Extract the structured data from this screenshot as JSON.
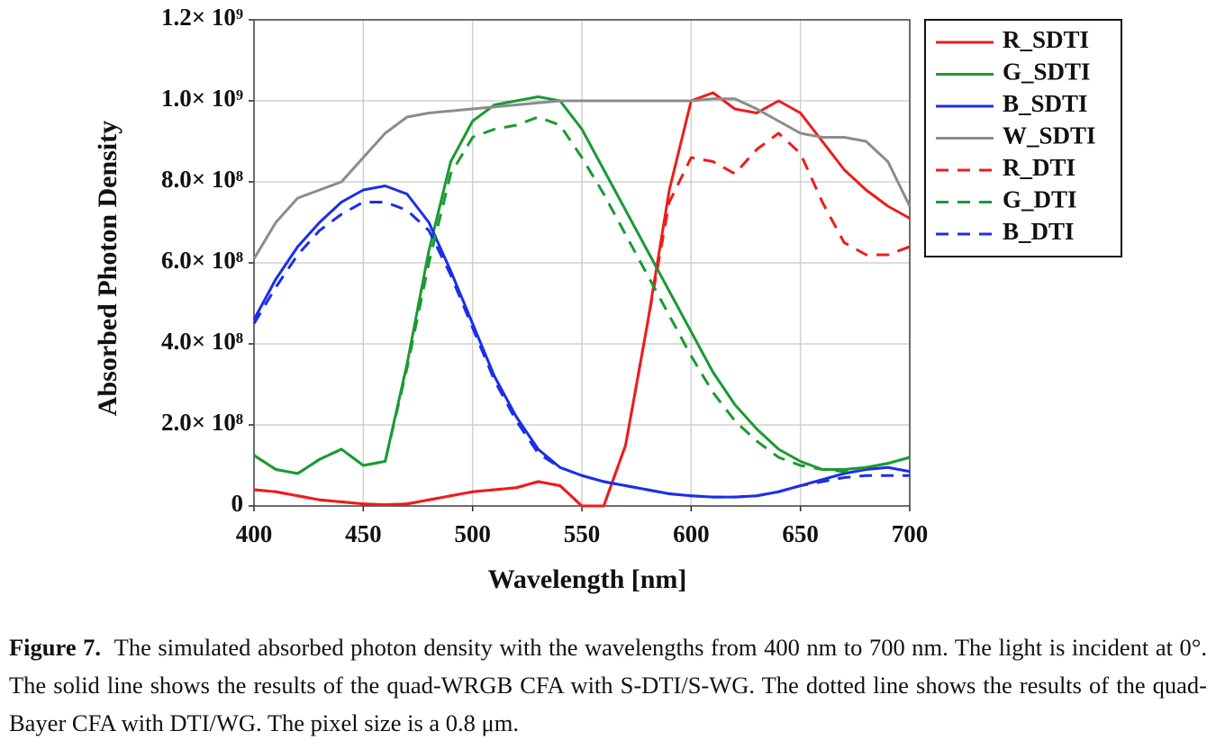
{
  "chart_data": {
    "type": "line",
    "xlabel": "Wavelength [nm]",
    "ylabel": "Absorbed Photon Density",
    "x": [
      400,
      410,
      420,
      430,
      440,
      450,
      460,
      470,
      480,
      490,
      500,
      510,
      520,
      530,
      540,
      550,
      560,
      570,
      580,
      590,
      600,
      610,
      620,
      630,
      640,
      650,
      660,
      670,
      680,
      690,
      700
    ],
    "xlim": [
      400,
      700
    ],
    "xticks": [
      400,
      450,
      500,
      550,
      600,
      650,
      700
    ],
    "ylim": [
      0,
      1200000000.0
    ],
    "yticks": [
      0,
      {
        "value": 200000000.0,
        "label": "2.0× 10⁸"
      },
      {
        "value": 400000000.0,
        "label": "4.0× 10⁸"
      },
      {
        "value": 600000000.0,
        "label": "6.0× 10⁸"
      },
      {
        "value": 800000000.0,
        "label": "8.0× 10⁸"
      },
      {
        "value": 1000000000.0,
        "label": "1.0× 10⁹"
      },
      {
        "value": 1200000000.0,
        "label": "1.2× 10⁹"
      }
    ],
    "grid": true,
    "legend": "outside-right",
    "series": [
      {
        "name": "R_SDTI",
        "color": "#ee1c1c",
        "dashed": false,
        "values": [
          40000000.0,
          35000000.0,
          25000000.0,
          15000000.0,
          10000000.0,
          5000000.0,
          3000000.0,
          5000000.0,
          15000000.0,
          25000000.0,
          35000000.0,
          40000000.0,
          45000000.0,
          60000000.0,
          50000000.0,
          0,
          0,
          150000000.0,
          450000000.0,
          780000000.0,
          1000000000.0,
          1020000000.0,
          980000000.0,
          970000000.0,
          1000000000.0,
          970000000.0,
          900000000.0,
          830000000.0,
          780000000.0,
          740000000.0,
          710000000.0
        ]
      },
      {
        "name": "G_SDTI",
        "color": "#1a9a32",
        "dashed": false,
        "values": [
          125000000.0,
          90000000.0,
          80000000.0,
          115000000.0,
          140000000.0,
          100000000.0,
          110000000.0,
          350000000.0,
          630000000.0,
          850000000.0,
          950000000.0,
          990000000.0,
          1000000000.0,
          1010000000.0,
          1000000000.0,
          930000000.0,
          830000000.0,
          730000000.0,
          630000000.0,
          530000000.0,
          430000000.0,
          330000000.0,
          250000000.0,
          190000000.0,
          140000000.0,
          110000000.0,
          90000000.0,
          90000000.0,
          95000000.0,
          105000000.0,
          120000000.0
        ]
      },
      {
        "name": "B_SDTI",
        "color": "#1c2ee8",
        "dashed": false,
        "values": [
          460000000.0,
          560000000.0,
          640000000.0,
          700000000.0,
          750000000.0,
          780000000.0,
          790000000.0,
          770000000.0,
          700000000.0,
          580000000.0,
          450000000.0,
          320000000.0,
          220000000.0,
          140000000.0,
          95000000.0,
          75000000.0,
          60000000.0,
          50000000.0,
          40000000.0,
          30000000.0,
          25000000.0,
          22000000.0,
          22000000.0,
          25000000.0,
          35000000.0,
          50000000.0,
          65000000.0,
          80000000.0,
          90000000.0,
          95000000.0,
          85000000.0
        ]
      },
      {
        "name": "W_SDTI",
        "color": "#8c8c8c",
        "dashed": false,
        "values": [
          610000000.0,
          700000000.0,
          760000000.0,
          780000000.0,
          800000000.0,
          860000000.0,
          920000000.0,
          960000000.0,
          970000000.0,
          975000000.0,
          980000000.0,
          985000000.0,
          990000000.0,
          995000000.0,
          1000000000.0,
          1000000000.0,
          1000000000.0,
          1000000000.0,
          1000000000.0,
          1000000000.0,
          1000000000.0,
          1005000000.0,
          1005000000.0,
          980000000.0,
          950000000.0,
          920000000.0,
          910000000.0,
          910000000.0,
          900000000.0,
          850000000.0,
          740000000.0
        ]
      },
      {
        "name": "R_DTI",
        "color": "#ee1c1c",
        "dashed": true,
        "values": [
          40000000.0,
          35000000.0,
          25000000.0,
          15000000.0,
          10000000.0,
          5000000.0,
          3000000.0,
          5000000.0,
          15000000.0,
          25000000.0,
          35000000.0,
          40000000.0,
          45000000.0,
          60000000.0,
          50000000.0,
          0,
          0,
          150000000.0,
          450000000.0,
          750000000.0,
          860000000.0,
          850000000.0,
          820000000.0,
          880000000.0,
          920000000.0,
          870000000.0,
          750000000.0,
          650000000.0,
          620000000.0,
          620000000.0,
          640000000.0
        ]
      },
      {
        "name": "G_DTI",
        "color": "#1a9a32",
        "dashed": true,
        "values": [
          125000000.0,
          90000000.0,
          80000000.0,
          115000000.0,
          140000000.0,
          100000000.0,
          110000000.0,
          340000000.0,
          600000000.0,
          820000000.0,
          910000000.0,
          930000000.0,
          940000000.0,
          960000000.0,
          940000000.0,
          860000000.0,
          770000000.0,
          670000000.0,
          570000000.0,
          470000000.0,
          370000000.0,
          280000000.0,
          210000000.0,
          160000000.0,
          120000000.0,
          100000000.0,
          90000000.0,
          85000000.0,
          95000000.0,
          105000000.0,
          120000000.0
        ]
      },
      {
        "name": "B_DTI",
        "color": "#1c2ee8",
        "dashed": true,
        "values": [
          450000000.0,
          540000000.0,
          620000000.0,
          680000000.0,
          720000000.0,
          750000000.0,
          750000000.0,
          730000000.0,
          680000000.0,
          570000000.0,
          440000000.0,
          310000000.0,
          210000000.0,
          130000000.0,
          95000000.0,
          75000000.0,
          60000000.0,
          50000000.0,
          40000000.0,
          30000000.0,
          25000000.0,
          22000000.0,
          22000000.0,
          25000000.0,
          35000000.0,
          50000000.0,
          60000000.0,
          70000000.0,
          75000000.0,
          75000000.0,
          75000000.0
        ]
      }
    ]
  },
  "caption": {
    "label": "Figure 7.",
    "text": "The simulated absorbed photon density with the wavelengths from 400 nm to 700 nm. The light is incident at 0°. The solid line shows the results of the quad-WRGB CFA with S-DTI/S-WG. The dotted line shows the results of the quad-Bayer CFA with DTI/WG. The pixel size is a 0.8 μm."
  }
}
